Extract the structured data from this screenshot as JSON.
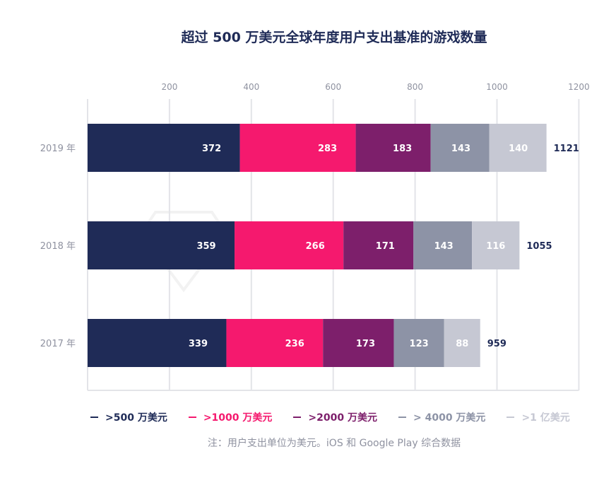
{
  "chart_data": {
    "type": "bar",
    "orientation": "horizontal",
    "stacked": true,
    "title": "超过 500 万美元全球年度用户支出基准的游戏数量",
    "categories": [
      "2019 年",
      "2018 年",
      "2017 年"
    ],
    "series": [
      {
        "name": ">500 万美元",
        "color": "#1f2b57",
        "values": [
          372,
          359,
          339
        ]
      },
      {
        "name": ">1000 万美元",
        "color": "#f5196e",
        "values": [
          283,
          266,
          236
        ]
      },
      {
        "name": ">2000 万美元",
        "color": "#7d1f6b",
        "values": [
          183,
          171,
          173
        ]
      },
      {
        "name": "> 4000 万美元",
        "color": "#8d93a6",
        "values": [
          143,
          143,
          123
        ]
      },
      {
        "name": ">1 亿美元",
        "color": "#c6c8d3",
        "values": [
          140,
          116,
          88
        ]
      }
    ],
    "totals": [
      1121,
      1055,
      959
    ],
    "xlim": [
      0,
      1200
    ],
    "xticks": [
      200,
      400,
      600,
      800,
      1000,
      1200
    ],
    "xaxis_position": "top",
    "grid": true,
    "legend_position": "bottom",
    "note": "注：用户支出单位为美元。iOS 和 Google Play 综合数据",
    "watermark": "APP ANNIE"
  }
}
